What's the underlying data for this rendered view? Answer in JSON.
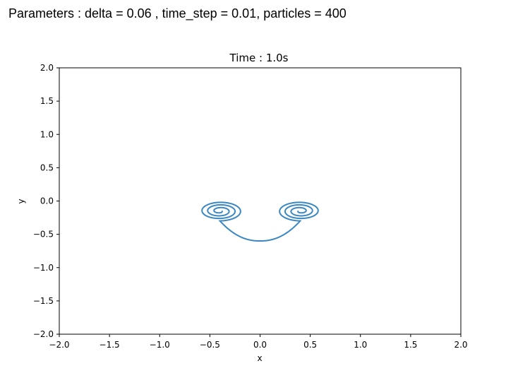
{
  "header": {
    "parameters_text": "Parameters : delta = 0.06 , time_step = 0.01, particles = 400"
  },
  "chart_data": {
    "type": "line",
    "title": "Time : 1.0s",
    "xlabel": "x",
    "ylabel": "y",
    "xlim": [
      -2.0,
      2.0
    ],
    "ylim": [
      -2.0,
      2.0
    ],
    "xticks": [
      "−2.0",
      "−1.5",
      "−1.0",
      "−0.5",
      "0.0",
      "0.5",
      "1.0",
      "1.5",
      "2.0"
    ],
    "yticks": [
      "2.0",
      "1.5",
      "1.0",
      "0.5",
      "0.0",
      "−0.5",
      "−1.0",
      "−1.5",
      "−2.0"
    ],
    "grid": false,
    "series_color": "#3a87c2",
    "curve": {
      "left_vortex_center": [
        -0.4,
        -0.15
      ],
      "right_vortex_center": [
        0.4,
        -0.15
      ],
      "bottom_point": [
        0.0,
        -0.6
      ],
      "outer_radius": 0.19
    }
  }
}
